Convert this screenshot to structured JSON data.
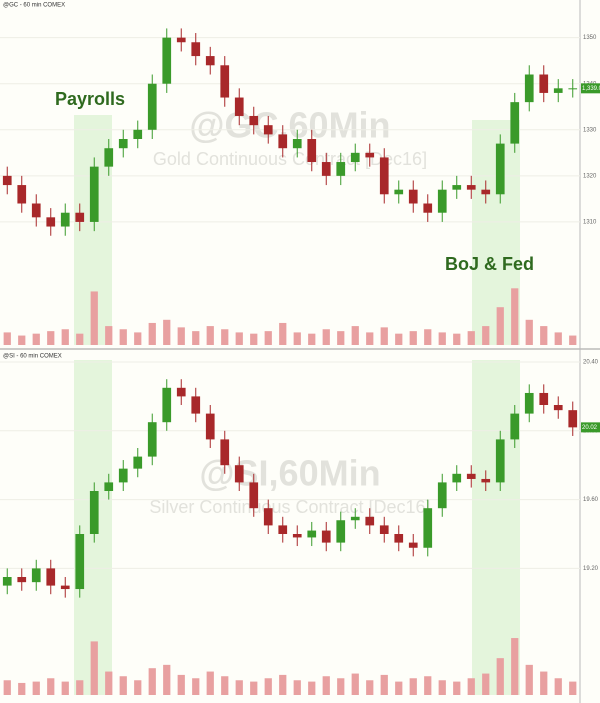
{
  "chart_data": [
    {
      "type": "candlestick",
      "title": "@GC,60Min",
      "subtitle": "Gold Continuous Contract [Dec16]",
      "header": "@GC - 60 min COMEX",
      "annotations": [
        "Payrolls",
        "BoJ & Fed"
      ],
      "last_label": "1,339.0",
      "up_color": "#3a9a2a",
      "down_color": "#a8282a",
      "volume_color": "#e8a0a0",
      "open": [
        1320,
        1318,
        1314,
        1311,
        1309,
        1312,
        1310,
        1322,
        1326,
        1328,
        1330,
        1340,
        1350,
        1349,
        1346,
        1344,
        1337,
        1333,
        1331,
        1329,
        1326,
        1328,
        1323,
        1320,
        1323,
        1325,
        1324,
        1316,
        1317,
        1314,
        1312,
        1317,
        1318,
        1317,
        1316,
        1327,
        1336,
        1342,
        1338,
        1339
      ],
      "high": [
        1322,
        1320,
        1316,
        1313,
        1314,
        1314,
        1324,
        1328,
        1330,
        1332,
        1342,
        1352,
        1352,
        1351,
        1348,
        1346,
        1339,
        1335,
        1333,
        1331,
        1330,
        1330,
        1325,
        1325,
        1327,
        1327,
        1326,
        1319,
        1319,
        1316,
        1319,
        1320,
        1320,
        1319,
        1329,
        1338,
        1344,
        1344,
        1341,
        1341
      ],
      "low": [
        1316,
        1312,
        1309,
        1307,
        1307,
        1308,
        1308,
        1320,
        1324,
        1326,
        1328,
        1338,
        1347,
        1344,
        1342,
        1335,
        1331,
        1329,
        1327,
        1324,
        1324,
        1321,
        1318,
        1318,
        1321,
        1322,
        1314,
        1314,
        1312,
        1310,
        1310,
        1315,
        1315,
        1314,
        1314,
        1325,
        1334,
        1336,
        1336,
        1337
      ],
      "close": [
        1318,
        1314,
        1311,
        1309,
        1312,
        1310,
        1322,
        1326,
        1328,
        1330,
        1340,
        1350,
        1349,
        1346,
        1344,
        1337,
        1333,
        1331,
        1329,
        1326,
        1328,
        1323,
        1320,
        1323,
        1325,
        1324,
        1316,
        1317,
        1314,
        1312,
        1317,
        1318,
        1317,
        1316,
        1327,
        1336,
        1342,
        1338,
        1339,
        1339
      ],
      "volume": [
        20,
        15,
        18,
        22,
        25,
        18,
        85,
        30,
        25,
        20,
        35,
        40,
        28,
        22,
        30,
        25,
        20,
        18,
        22,
        35,
        20,
        18,
        25,
        22,
        30,
        20,
        28,
        18,
        22,
        25,
        20,
        18,
        22,
        30,
        60,
        90,
        40,
        30,
        20,
        15
      ],
      "ylim": [
        1300,
        1356
      ],
      "yticks": [
        1310,
        1320,
        1330,
        1340,
        1350
      ],
      "volume_ylim": [
        0,
        100
      ]
    },
    {
      "type": "candlestick",
      "title": "@SI,60Min",
      "subtitle": "Silver Continuous Contract [Dec16]",
      "header": "@SI - 60 min COMEX",
      "annotations": [],
      "last_label": "20.02",
      "up_color": "#3a9a2a",
      "down_color": "#a8282a",
      "volume_color": "#e8a0a0",
      "open": [
        19.1,
        19.15,
        19.12,
        19.2,
        19.1,
        19.08,
        19.4,
        19.65,
        19.7,
        19.78,
        19.85,
        20.05,
        20.25,
        20.2,
        20.1,
        19.95,
        19.8,
        19.7,
        19.55,
        19.45,
        19.4,
        19.38,
        19.42,
        19.35,
        19.48,
        19.5,
        19.45,
        19.4,
        19.35,
        19.32,
        19.55,
        19.7,
        19.75,
        19.72,
        19.7,
        19.95,
        20.1,
        20.22,
        20.15,
        20.12
      ],
      "high": [
        19.2,
        19.2,
        19.25,
        19.25,
        19.15,
        19.45,
        19.7,
        19.75,
        19.83,
        19.9,
        20.1,
        20.3,
        20.3,
        20.25,
        20.15,
        20.0,
        19.85,
        19.75,
        19.6,
        19.5,
        19.45,
        19.47,
        19.47,
        19.53,
        19.55,
        19.55,
        19.5,
        19.45,
        19.4,
        19.6,
        19.75,
        19.8,
        19.8,
        19.77,
        20.0,
        20.15,
        20.27,
        20.27,
        20.2,
        20.17
      ],
      "low": [
        19.05,
        19.07,
        19.07,
        19.05,
        19.03,
        19.03,
        19.35,
        19.6,
        19.65,
        19.73,
        19.8,
        20.0,
        20.15,
        20.05,
        19.9,
        19.75,
        19.65,
        19.5,
        19.4,
        19.35,
        19.33,
        19.33,
        19.3,
        19.3,
        19.43,
        19.4,
        19.35,
        19.3,
        19.27,
        19.27,
        19.5,
        19.65,
        19.67,
        19.65,
        19.65,
        19.9,
        20.05,
        20.1,
        20.07,
        19.97
      ],
      "close": [
        19.15,
        19.12,
        19.2,
        19.1,
        19.08,
        19.4,
        19.65,
        19.7,
        19.78,
        19.85,
        20.05,
        20.25,
        20.2,
        20.1,
        19.95,
        19.8,
        19.7,
        19.55,
        19.45,
        19.4,
        19.38,
        19.42,
        19.35,
        19.48,
        19.5,
        19.45,
        19.4,
        19.35,
        19.32,
        19.55,
        19.7,
        19.75,
        19.72,
        19.7,
        19.95,
        20.1,
        20.22,
        20.15,
        20.12,
        20.02
      ],
      "volume": [
        22,
        18,
        20,
        25,
        20,
        22,
        80,
        35,
        28,
        22,
        40,
        45,
        30,
        25,
        35,
        28,
        22,
        20,
        25,
        30,
        22,
        20,
        28,
        25,
        32,
        22,
        30,
        20,
        25,
        28,
        22,
        20,
        25,
        32,
        55,
        85,
        45,
        35,
        25,
        20
      ],
      "ylim": [
        18.9,
        20.4
      ],
      "yticks": [
        {
          "value": 19.2,
          "label": "19.20"
        },
        {
          "value": 19.6,
          "label": "19.60"
        },
        {
          "value": 20,
          "label": "20.00"
        },
        {
          "value": 20.4,
          "label": "20.40"
        }
      ],
      "volume_ylim": [
        0,
        100
      ]
    }
  ]
}
